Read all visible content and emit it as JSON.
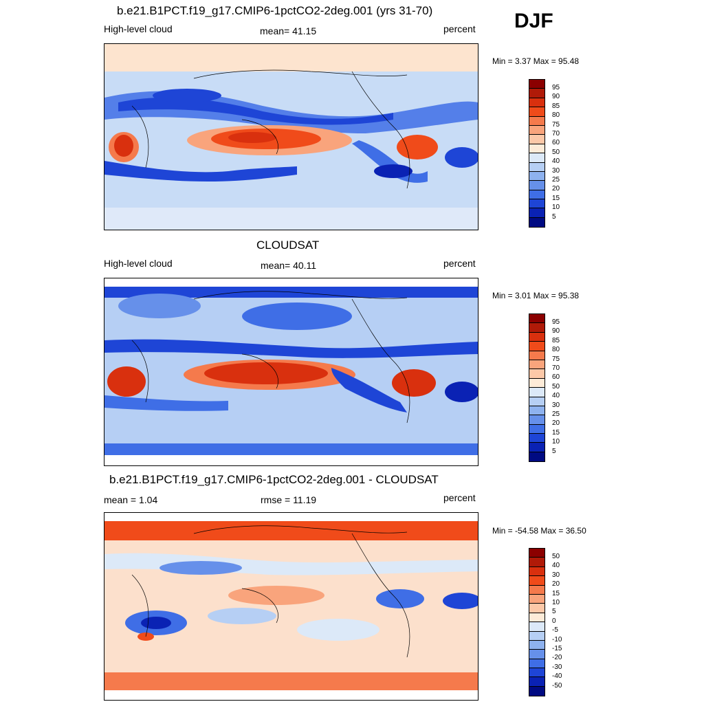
{
  "season": "DJF",
  "panels": [
    {
      "title": "b.e21.B1PCT.f19_g17.CMIP6-1pctCO2-2deg.001 (yrs 31-70)",
      "left_label": "High-level cloud",
      "center_label": "mean=  41.15",
      "units": "percent",
      "minmax": "Min =   3.37 Max =  95.48",
      "levels": [
        "95",
        "90",
        "85",
        "80",
        "75",
        "70",
        "60",
        "50",
        "40",
        "30",
        "25",
        "20",
        "15",
        "10",
        "5"
      ]
    },
    {
      "title": "CLOUDSAT",
      "left_label": "High-level cloud",
      "center_label": "mean=  40.11",
      "units": "percent",
      "minmax": "Min =   3.01 Max =  95.38",
      "levels": [
        "95",
        "90",
        "85",
        "80",
        "75",
        "70",
        "60",
        "50",
        "40",
        "30",
        "25",
        "20",
        "15",
        "10",
        "5"
      ]
    },
    {
      "title": "b.e21.B1PCT.f19_g17.CMIP6-1pctCO2-2deg.001 - CLOUDSAT",
      "left_label": "mean =   1.04",
      "center_label": "rmse =  11.19",
      "units": "percent",
      "minmax": "Min = -54.58 Max =  36.50",
      "levels": [
        "50",
        "40",
        "30",
        "20",
        "15",
        "10",
        "5",
        "0",
        "-5",
        "-10",
        "-15",
        "-20",
        "-30",
        "-40",
        "-50"
      ]
    }
  ],
  "colors": {
    "abs_scale": [
      "#8b0000",
      "#b01a08",
      "#d9300e",
      "#f04b1a",
      "#f57a4c",
      "#f9a47c",
      "#fcc8a8",
      "#fdebd8",
      "#dce9f8",
      "#b6cff4",
      "#8eb2ef",
      "#6690ea",
      "#3f6ee6",
      "#1e45d6",
      "#0a22b4",
      "#000a82"
    ],
    "diff_scale": [
      "#8b0000",
      "#b01a08",
      "#d9300e",
      "#f04b1a",
      "#f57a4c",
      "#f9a47c",
      "#fcc8a8",
      "#fdebd8",
      "#dce9f8",
      "#b6cff4",
      "#8eb2ef",
      "#6690ea",
      "#3f6ee6",
      "#1e45d6",
      "#0a22b4",
      "#000a82"
    ]
  }
}
